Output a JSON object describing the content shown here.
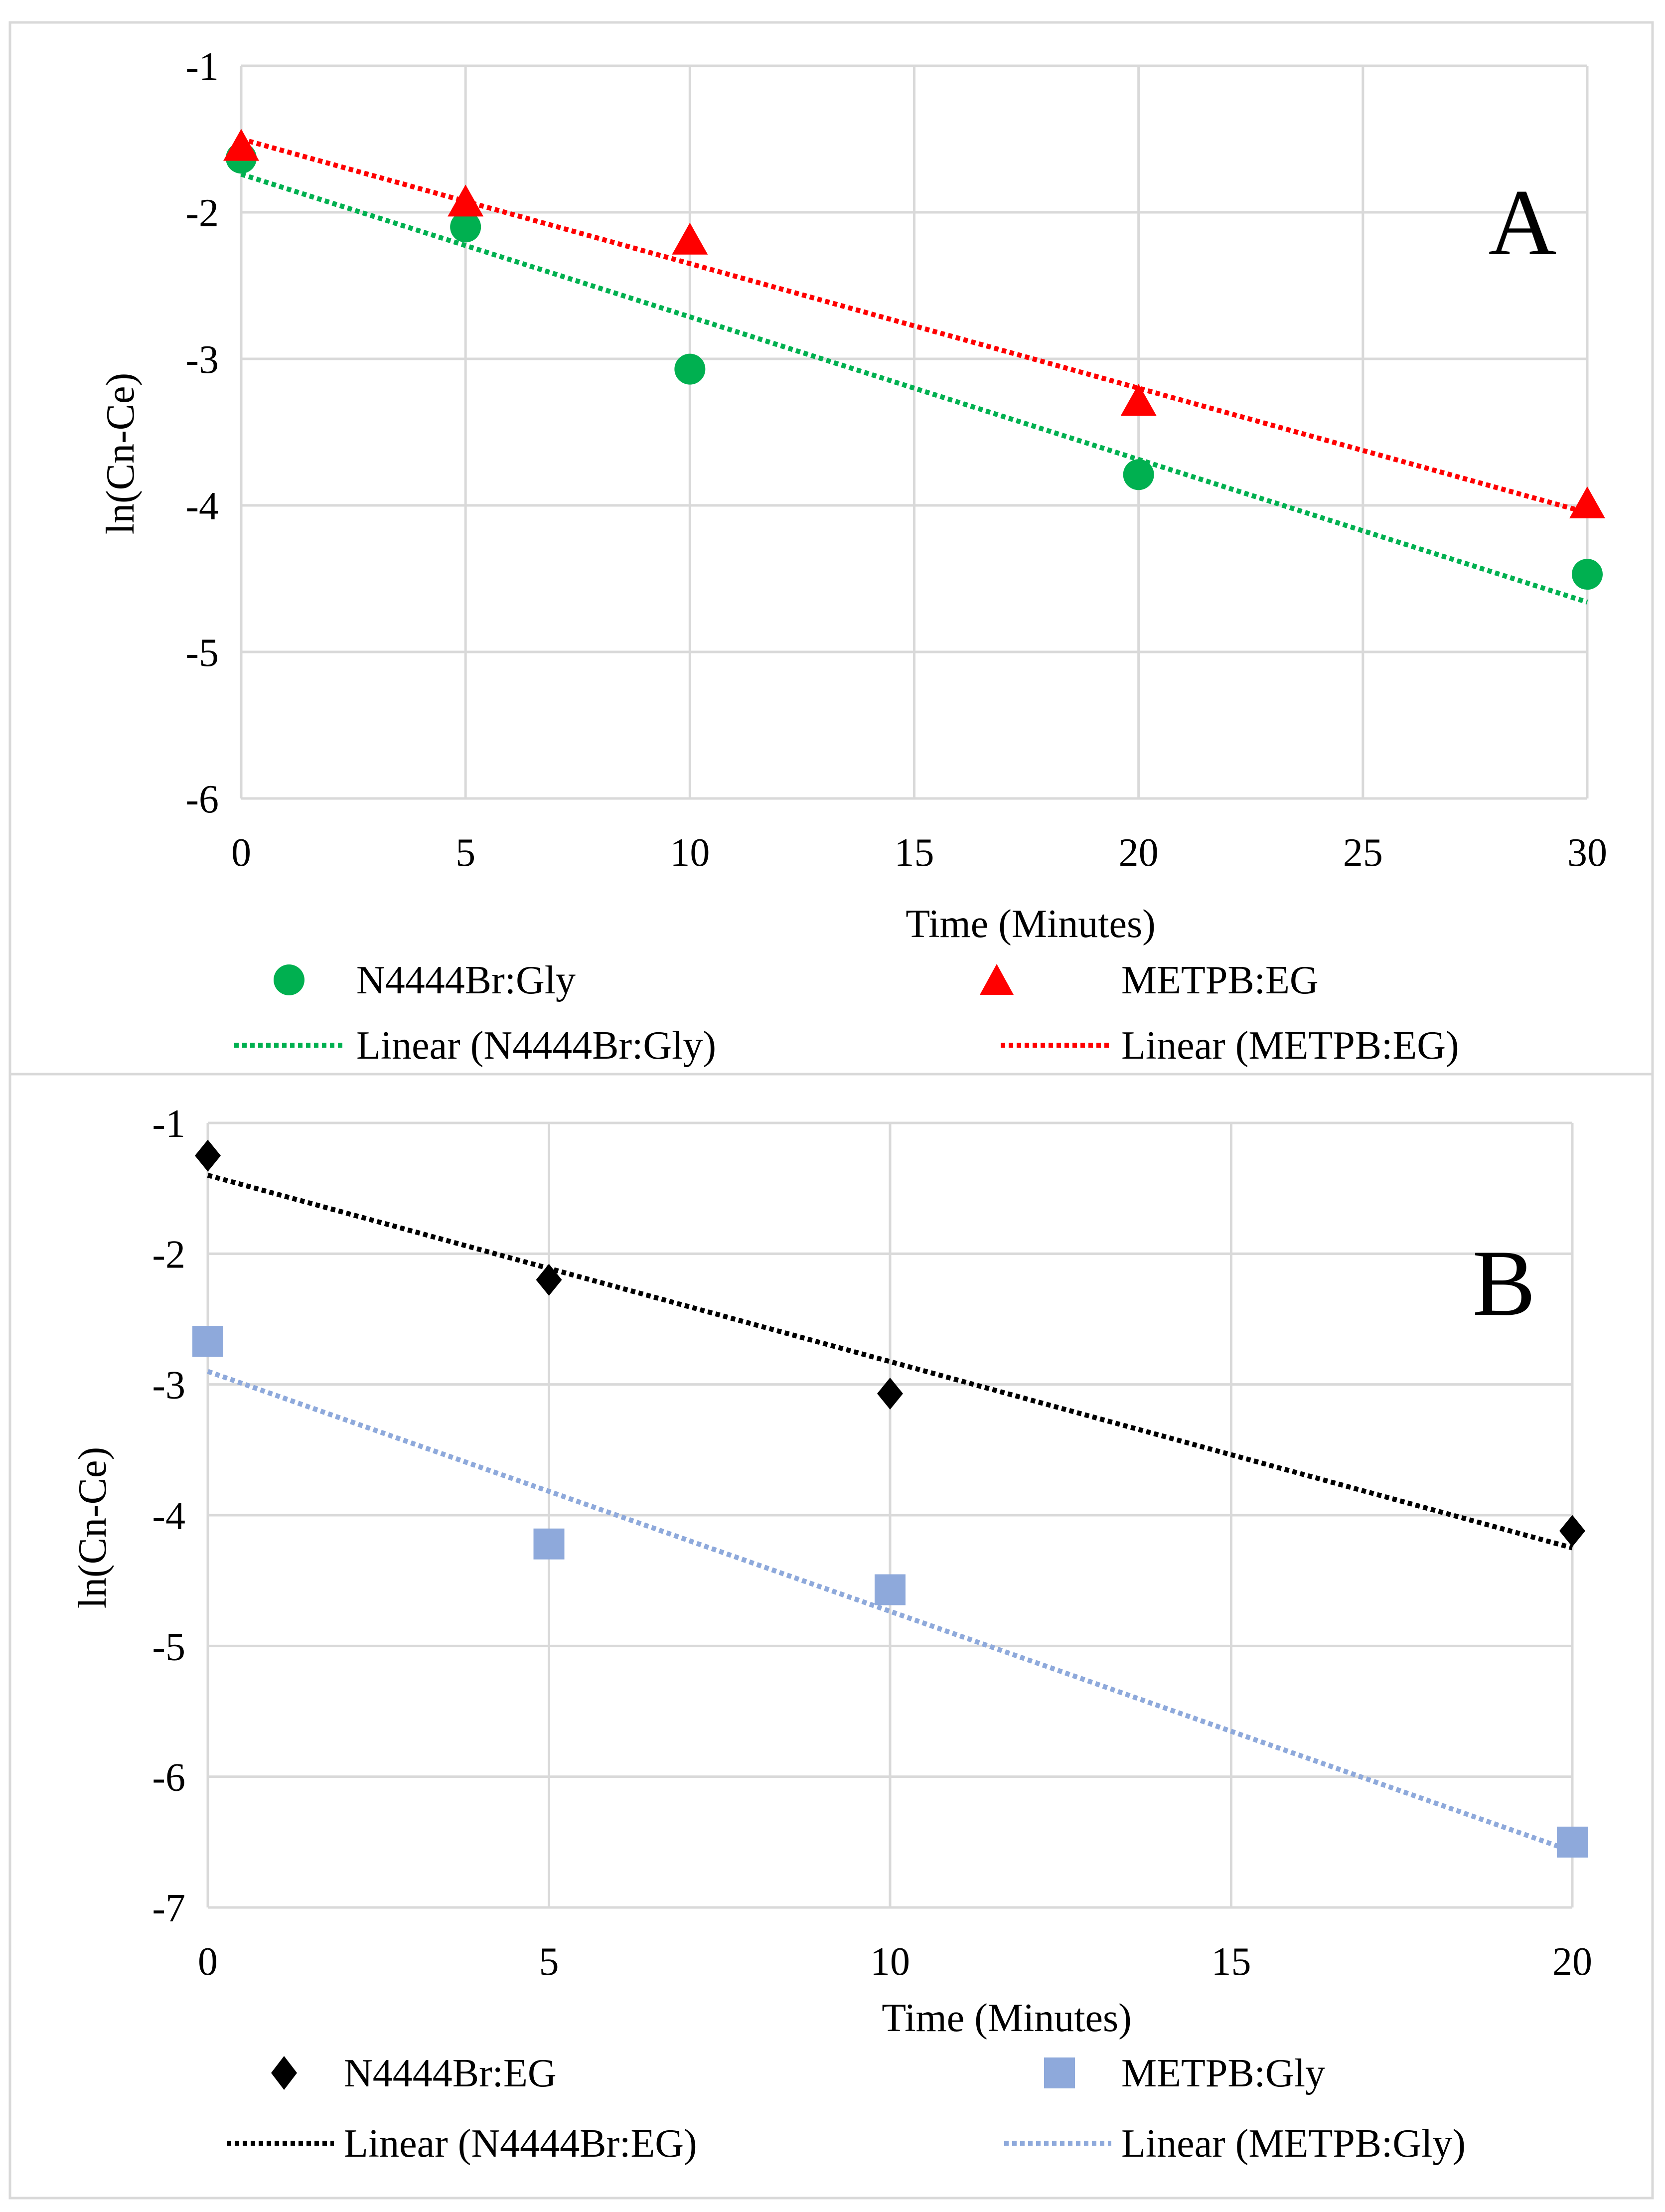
{
  "chart_data": [
    {
      "type": "scatter",
      "panel_label": "A",
      "xlabel": "Time (Minutes)",
      "ylabel": "ln(Cn-Ce)",
      "xlim": [
        0,
        30
      ],
      "ylim": [
        -6,
        -1
      ],
      "xticks": [
        0,
        5,
        10,
        15,
        20,
        25,
        30
      ],
      "yticks": [
        -1,
        -2,
        -3,
        -4,
        -5,
        -6
      ],
      "grid": true,
      "legend_position": "bottom",
      "series": [
        {
          "name": "N4444Br:Gly",
          "marker": "circle",
          "color": "#00B050",
          "x": [
            0,
            5,
            10,
            20,
            30
          ],
          "y": [
            -1.63,
            -2.1,
            -3.07,
            -3.79,
            -4.47
          ]
        },
        {
          "name": "METPB:EG",
          "marker": "triangle",
          "color": "#FF0000",
          "x": [
            0,
            5,
            10,
            20,
            30
          ],
          "y": [
            -1.56,
            -1.94,
            -2.2,
            -3.3,
            -4.0
          ]
        }
      ],
      "trendlines": [
        {
          "name": "Linear (N4444Br:Gly)",
          "color": "#00B050",
          "x": [
            0,
            30
          ],
          "y": [
            -1.74,
            -4.66
          ]
        },
        {
          "name": "Linear (METPB:EG)",
          "color": "#FF0000",
          "x": [
            0,
            30
          ],
          "y": [
            -1.5,
            -4.05
          ]
        }
      ]
    },
    {
      "type": "scatter",
      "panel_label": "B",
      "xlabel": "Time (Minutes)",
      "ylabel": "ln(Cn-Ce)",
      "xlim": [
        0,
        20
      ],
      "ylim": [
        -7,
        -1
      ],
      "xticks": [
        0,
        5,
        10,
        15,
        20
      ],
      "yticks": [
        -1,
        -2,
        -3,
        -4,
        -5,
        -6,
        -7
      ],
      "grid": true,
      "legend_position": "bottom",
      "series": [
        {
          "name": "N4444Br:EG",
          "marker": "diamond",
          "color": "#000000",
          "x": [
            0,
            5,
            10,
            20
          ],
          "y": [
            -1.25,
            -2.2,
            -3.07,
            -4.12
          ]
        },
        {
          "name": "METPB:Gly",
          "marker": "square",
          "color": "#8EA9DB",
          "x": [
            0,
            5,
            10,
            20
          ],
          "y": [
            -2.67,
            -4.22,
            -4.57,
            -6.5
          ]
        }
      ],
      "trendlines": [
        {
          "name": "Linear (N4444Br:EG)",
          "color": "#000000",
          "x": [
            0,
            20
          ],
          "y": [
            -1.4,
            -4.25
          ]
        },
        {
          "name": "Linear (METPB:Gly)",
          "color": "#8EA9DB",
          "x": [
            0,
            20
          ],
          "y": [
            -2.9,
            -6.57
          ]
        }
      ]
    }
  ]
}
